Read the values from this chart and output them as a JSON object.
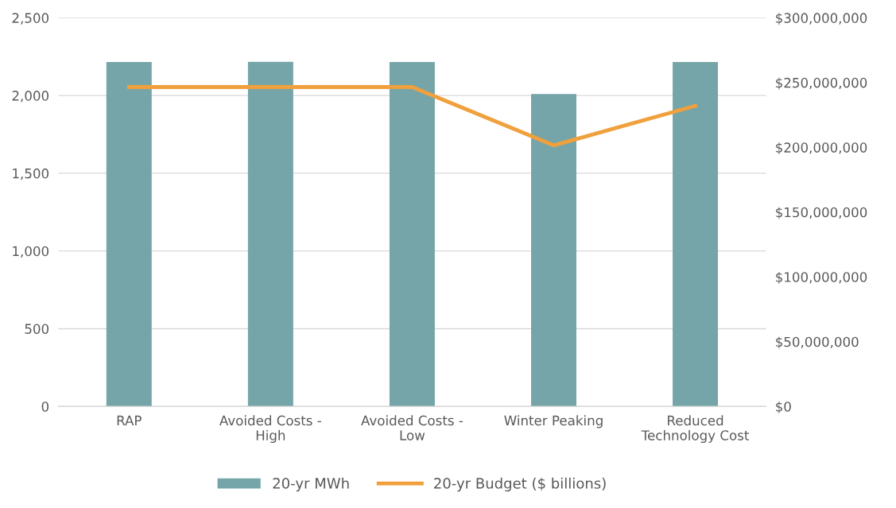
{
  "chart_data": {
    "type": "bar",
    "categories": [
      "RAP",
      "Avoided Costs -\nHigh",
      "Avoided Costs -\nLow",
      "Winter Peaking",
      "Reduced\nTechnology Cost"
    ],
    "series": [
      {
        "name": "20-yr MWh",
        "color": "#75a5a8",
        "values": [
          2215,
          2217,
          2215,
          2010,
          2215
        ]
      },
      {
        "name": "20-yr Budget ($ billions)",
        "type": "line",
        "axis": "y2",
        "color": "#f0a03c",
        "values": [
          246500000,
          246500000,
          246500000,
          201500000,
          232000000
        ]
      }
    ],
    "ylim": [
      0,
      2500
    ],
    "yticks": [
      {
        "value": 0,
        "label": "0"
      },
      {
        "value": 500,
        "label": "500"
      },
      {
        "value": 1000,
        "label": "1,000"
      },
      {
        "value": 1500,
        "label": "1,500"
      },
      {
        "value": 2000,
        "label": "2,000"
      },
      {
        "value": 2500,
        "label": "2,500"
      }
    ],
    "y2lim": [
      0,
      300000000
    ],
    "y2ticks": [
      {
        "value": 0,
        "label": "$0"
      },
      {
        "value": 50000000,
        "label": "$50,000,000"
      },
      {
        "value": 100000000,
        "label": "$100,000,000"
      },
      {
        "value": 150000000,
        "label": "$150,000,000"
      },
      {
        "value": 200000000,
        "label": "$200,000,000"
      },
      {
        "value": 250000000,
        "label": "$250,000,000"
      },
      {
        "value": 300000000,
        "label": "$300,000,000"
      }
    ],
    "grid": "y",
    "legend": "bottom",
    "marker": "none"
  }
}
